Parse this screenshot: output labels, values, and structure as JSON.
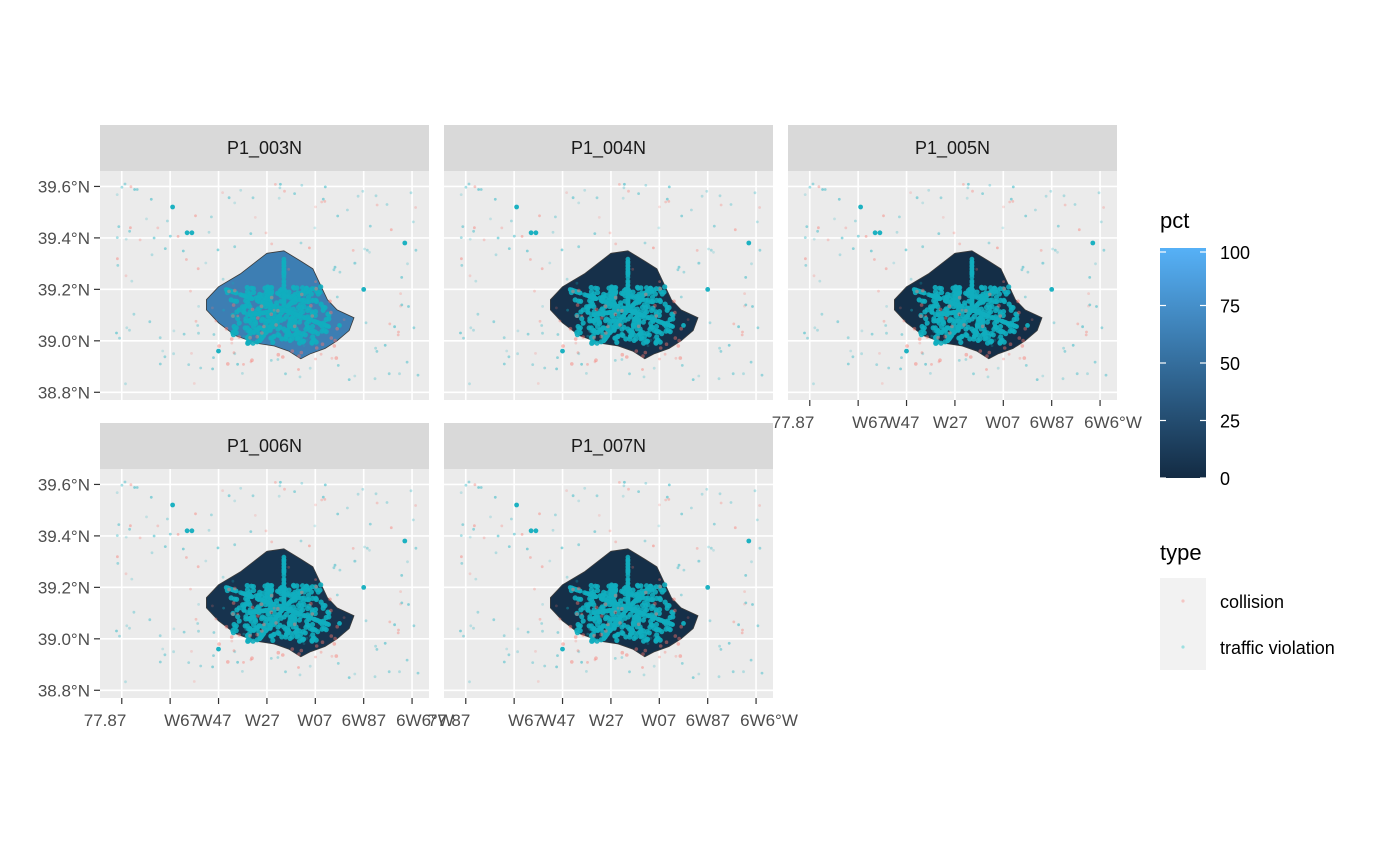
{
  "chart_data": {
    "type": "map",
    "panels": [
      {
        "title": "P1_003N",
        "fill_pct": 62
      },
      {
        "title": "P1_004N",
        "fill_pct": 4
      },
      {
        "title": "P1_005N",
        "fill_pct": 2
      },
      {
        "title": "P1_006N",
        "fill_pct": 6
      },
      {
        "title": "P1_007N",
        "fill_pct": 3
      }
    ],
    "y_axis": {
      "ticks": [
        39.6,
        39.4,
        39.2,
        39.0,
        38.8
      ],
      "tick_labels": [
        "39.6°N",
        "39.4°N",
        "39.2°N",
        "39.0°N",
        "38.8°N"
      ],
      "range": [
        38.77,
        39.66
      ]
    },
    "x_axis": {
      "ticks": [
        -77.87,
        -77.67,
        -77.47,
        -77.27,
        -77.07,
        -76.87,
        -76.67
      ],
      "tick_labels": [
        "77.87°W",
        "77.67°W",
        "77.47°W",
        "77.27°W",
        "77.07°W",
        "76.87°W",
        "76.67°W"
      ],
      "shown_label_text": [
        "77.87",
        "W67",
        "W47",
        "W27",
        "W07",
        "6W87",
        "6W6°W"
      ],
      "range": [
        -77.96,
        -76.6
      ]
    },
    "grid": true,
    "legends": [
      {
        "title": "pct",
        "kind": "colorbar",
        "ticks": [
          100,
          75,
          50,
          25,
          0
        ],
        "tick_labels": [
          "100",
          "75",
          "50",
          "25",
          "0"
        ],
        "low_color": "#132B43",
        "high_color": "#56B1F7"
      },
      {
        "title": "type",
        "kind": "points",
        "entries": [
          {
            "label": "collision",
            "color": "#F8766D"
          },
          {
            "label": "traffic violation",
            "color": "#00BFC4"
          }
        ]
      }
    ],
    "legend_position": "right"
  },
  "colors": {
    "panel_bg": "#EBEBEB",
    "strip_bg": "#D9D9D9",
    "grid": "#FFFFFF",
    "collision": "#F8766D",
    "violation": "#11AEBF"
  }
}
